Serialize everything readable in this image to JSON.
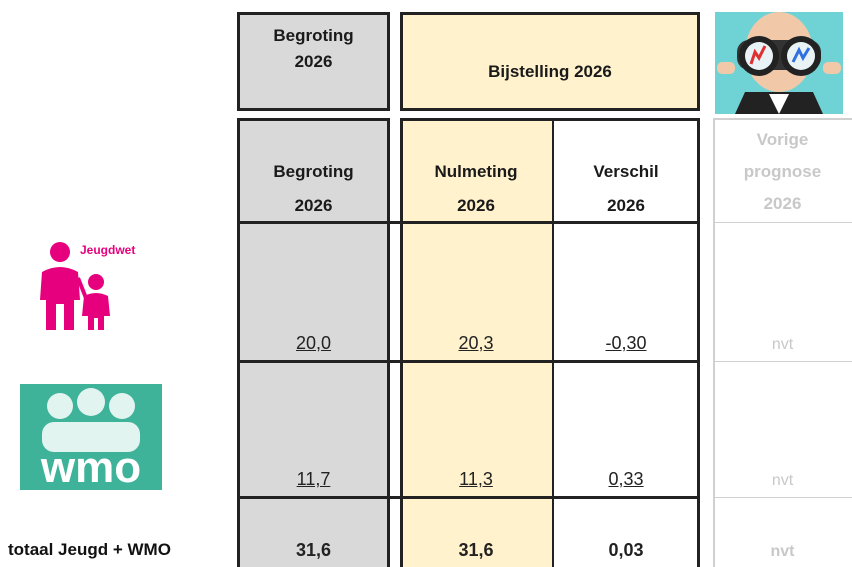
{
  "header": {
    "begroting": [
      "Begroting",
      "2026"
    ],
    "bijstelling": "Bijstelling 2026"
  },
  "columns": [
    [
      "Begroting",
      "2026"
    ],
    [
      "Nulmeting",
      "2026"
    ],
    [
      "Verschil",
      "2026"
    ],
    [
      "Vorige",
      "prognose",
      "2026"
    ]
  ],
  "rows": [
    {
      "label": "Jeugdwet",
      "values": [
        "20,0",
        "20,3",
        "-0,30",
        "nvt"
      ]
    },
    {
      "label": "wmo",
      "values": [
        "11,7",
        "11,3",
        "0,33",
        "nvt"
      ]
    },
    {
      "label": "totaal Jeugd + WMO",
      "values": [
        "31,6",
        "31,6",
        "0,03",
        "nvt"
      ]
    }
  ]
}
